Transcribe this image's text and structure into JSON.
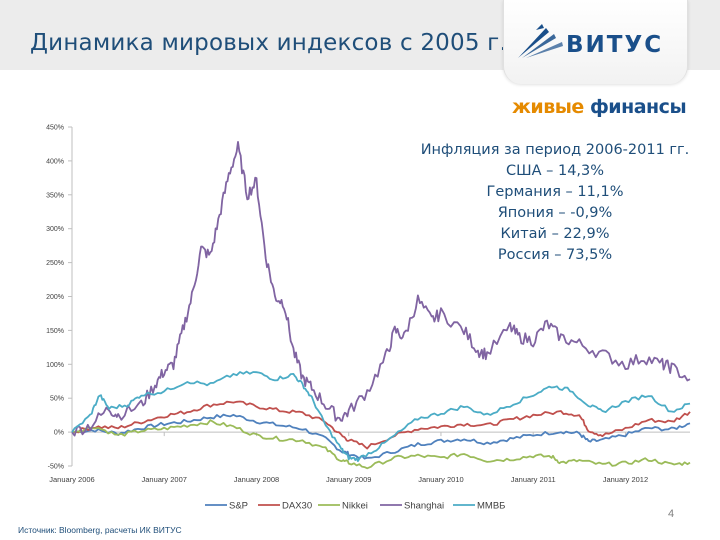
{
  "title": "Динамика мировых индексов с 2005 г.",
  "logo": {
    "name": "ВИТУС"
  },
  "brand": {
    "part1": "живые",
    "part2": "финансы"
  },
  "inflation": {
    "header": "Инфляция за период 2006-2011 гг.",
    "lines": [
      "США – 14,3%",
      "Германия – 11,1%",
      "Япония – -0,9%",
      "Китай – 22,9%",
      "Россия – 73,5%"
    ]
  },
  "source": "Источник: Bloomberg, расчеты ИК ВИТУС",
  "page_number": "4",
  "colors": {
    "sp": "#4f81bd",
    "dax": "#c0504d",
    "nikkei": "#9bbb59",
    "shanghai": "#8064a2",
    "micex": "#4bacc6",
    "axis": "#bfbfbf",
    "text": "#1f4e79"
  },
  "chart_data": {
    "type": "line",
    "title": "",
    "xlabel": "",
    "ylabel": "",
    "ylim": [
      -50,
      450
    ],
    "y_ticks": [
      -50,
      0,
      50,
      100,
      150,
      200,
      250,
      300,
      350,
      400,
      450
    ],
    "y_tick_labels": [
      "-50%",
      "0%",
      "50%",
      "100%",
      "150%",
      "200%",
      "250%",
      "300%",
      "350%",
      "400%",
      "450%"
    ],
    "xlim": [
      2006.0,
      2012.7
    ],
    "x_ticks": [
      2006,
      2007,
      2008,
      2009,
      2010,
      2011,
      2012
    ],
    "x_tick_labels": [
      "January 2006",
      "January 2007",
      "January 2008",
      "January 2009",
      "January 2010",
      "January 2011",
      "January 2012"
    ],
    "legend_position": "bottom",
    "series": [
      {
        "name": "S&P",
        "color_key": "sp",
        "points": [
          [
            2006.0,
            0
          ],
          [
            2006.25,
            3
          ],
          [
            2006.5,
            -2
          ],
          [
            2006.75,
            6
          ],
          [
            2007.0,
            12
          ],
          [
            2007.25,
            16
          ],
          [
            2007.5,
            22
          ],
          [
            2007.75,
            25
          ],
          [
            2008.0,
            16
          ],
          [
            2008.25,
            10
          ],
          [
            2008.5,
            5
          ],
          [
            2008.75,
            -10
          ],
          [
            2008.92,
            -28
          ],
          [
            2009.0,
            -32
          ],
          [
            2009.2,
            -40
          ],
          [
            2009.5,
            -28
          ],
          [
            2009.75,
            -18
          ],
          [
            2010.0,
            -13
          ],
          [
            2010.25,
            -10
          ],
          [
            2010.5,
            -16
          ],
          [
            2010.75,
            -10
          ],
          [
            2011.0,
            -4
          ],
          [
            2011.3,
            1
          ],
          [
            2011.5,
            -2
          ],
          [
            2011.6,
            -14
          ],
          [
            2011.75,
            -12
          ],
          [
            2012.0,
            -4
          ],
          [
            2012.25,
            6
          ],
          [
            2012.5,
            4
          ],
          [
            2012.7,
            13
          ]
        ]
      },
      {
        "name": "DAX30",
        "color_key": "dax",
        "points": [
          [
            2006.0,
            0
          ],
          [
            2006.25,
            8
          ],
          [
            2006.5,
            6
          ],
          [
            2006.75,
            15
          ],
          [
            2007.0,
            24
          ],
          [
            2007.25,
            30
          ],
          [
            2007.5,
            40
          ],
          [
            2007.75,
            45
          ],
          [
            2008.0,
            38
          ],
          [
            2008.25,
            32
          ],
          [
            2008.5,
            28
          ],
          [
            2008.75,
            15
          ],
          [
            2008.92,
            -5
          ],
          [
            2009.0,
            -12
          ],
          [
            2009.2,
            -22
          ],
          [
            2009.5,
            -5
          ],
          [
            2009.75,
            5
          ],
          [
            2010.0,
            8
          ],
          [
            2010.25,
            12
          ],
          [
            2010.5,
            10
          ],
          [
            2010.75,
            18
          ],
          [
            2011.0,
            25
          ],
          [
            2011.3,
            30
          ],
          [
            2011.5,
            25
          ],
          [
            2011.6,
            3
          ],
          [
            2011.75,
            -5
          ],
          [
            2012.0,
            5
          ],
          [
            2012.25,
            18
          ],
          [
            2012.5,
            15
          ],
          [
            2012.7,
            30
          ]
        ]
      },
      {
        "name": "Nikkei",
        "color_key": "nikkei",
        "points": [
          [
            2006.0,
            0
          ],
          [
            2006.25,
            8
          ],
          [
            2006.5,
            -5
          ],
          [
            2006.75,
            2
          ],
          [
            2007.0,
            5
          ],
          [
            2007.25,
            10
          ],
          [
            2007.5,
            15
          ],
          [
            2007.75,
            8
          ],
          [
            2008.0,
            -5
          ],
          [
            2008.25,
            -10
          ],
          [
            2008.5,
            -12
          ],
          [
            2008.75,
            -25
          ],
          [
            2008.92,
            -42
          ],
          [
            2009.0,
            -45
          ],
          [
            2009.2,
            -52
          ],
          [
            2009.5,
            -38
          ],
          [
            2009.75,
            -35
          ],
          [
            2010.0,
            -38
          ],
          [
            2010.25,
            -32
          ],
          [
            2010.5,
            -42
          ],
          [
            2010.75,
            -40
          ],
          [
            2011.0,
            -35
          ],
          [
            2011.2,
            -36
          ],
          [
            2011.3,
            -45
          ],
          [
            2011.5,
            -42
          ],
          [
            2011.75,
            -48
          ],
          [
            2012.0,
            -46
          ],
          [
            2012.25,
            -40
          ],
          [
            2012.5,
            -48
          ],
          [
            2012.7,
            -45
          ]
        ]
      },
      {
        "name": "Shanghai",
        "color_key": "shanghai",
        "points": [
          [
            2006.0,
            0
          ],
          [
            2006.2,
            10
          ],
          [
            2006.4,
            35
          ],
          [
            2006.5,
            25
          ],
          [
            2006.75,
            40
          ],
          [
            2006.9,
            70
          ],
          [
            2007.0,
            90
          ],
          [
            2007.1,
            100
          ],
          [
            2007.2,
            150
          ],
          [
            2007.3,
            200
          ],
          [
            2007.4,
            270
          ],
          [
            2007.5,
            260
          ],
          [
            2007.6,
            320
          ],
          [
            2007.7,
            380
          ],
          [
            2007.8,
            420
          ],
          [
            2007.9,
            350
          ],
          [
            2008.0,
            370
          ],
          [
            2008.1,
            260
          ],
          [
            2008.2,
            200
          ],
          [
            2008.3,
            190
          ],
          [
            2008.4,
            120
          ],
          [
            2008.5,
            80
          ],
          [
            2008.6,
            65
          ],
          [
            2008.75,
            40
          ],
          [
            2008.9,
            20
          ],
          [
            2009.0,
            30
          ],
          [
            2009.2,
            60
          ],
          [
            2009.4,
            110
          ],
          [
            2009.5,
            150
          ],
          [
            2009.6,
            140
          ],
          [
            2009.75,
            195
          ],
          [
            2009.9,
            165
          ],
          [
            2010.0,
            175
          ],
          [
            2010.25,
            150
          ],
          [
            2010.4,
            120
          ],
          [
            2010.5,
            115
          ],
          [
            2010.75,
            155
          ],
          [
            2010.85,
            140
          ],
          [
            2011.0,
            135
          ],
          [
            2011.15,
            160
          ],
          [
            2011.3,
            140
          ],
          [
            2011.5,
            130
          ],
          [
            2011.75,
            115
          ],
          [
            2012.0,
            100
          ],
          [
            2012.2,
            110
          ],
          [
            2012.4,
            100
          ],
          [
            2012.5,
            95
          ],
          [
            2012.7,
            78
          ]
        ]
      },
      {
        "name": "ММВБ",
        "color_key": "micex",
        "points": [
          [
            2006.0,
            0
          ],
          [
            2006.2,
            25
          ],
          [
            2006.3,
            55
          ],
          [
            2006.4,
            35
          ],
          [
            2006.6,
            40
          ],
          [
            2006.75,
            55
          ],
          [
            2007.0,
            60
          ],
          [
            2007.25,
            75
          ],
          [
            2007.5,
            70
          ],
          [
            2007.75,
            85
          ],
          [
            2008.0,
            88
          ],
          [
            2008.2,
            78
          ],
          [
            2008.4,
            85
          ],
          [
            2008.5,
            70
          ],
          [
            2008.6,
            50
          ],
          [
            2008.75,
            10
          ],
          [
            2008.92,
            -25
          ],
          [
            2009.0,
            -38
          ],
          [
            2009.1,
            -40
          ],
          [
            2009.3,
            -25
          ],
          [
            2009.5,
            -5
          ],
          [
            2009.75,
            20
          ],
          [
            2010.0,
            28
          ],
          [
            2010.25,
            38
          ],
          [
            2010.5,
            25
          ],
          [
            2010.75,
            40
          ],
          [
            2011.0,
            55
          ],
          [
            2011.2,
            68
          ],
          [
            2011.4,
            62
          ],
          [
            2011.6,
            40
          ],
          [
            2011.75,
            30
          ],
          [
            2012.0,
            45
          ],
          [
            2012.25,
            55
          ],
          [
            2012.5,
            30
          ],
          [
            2012.7,
            42
          ]
        ]
      }
    ]
  }
}
